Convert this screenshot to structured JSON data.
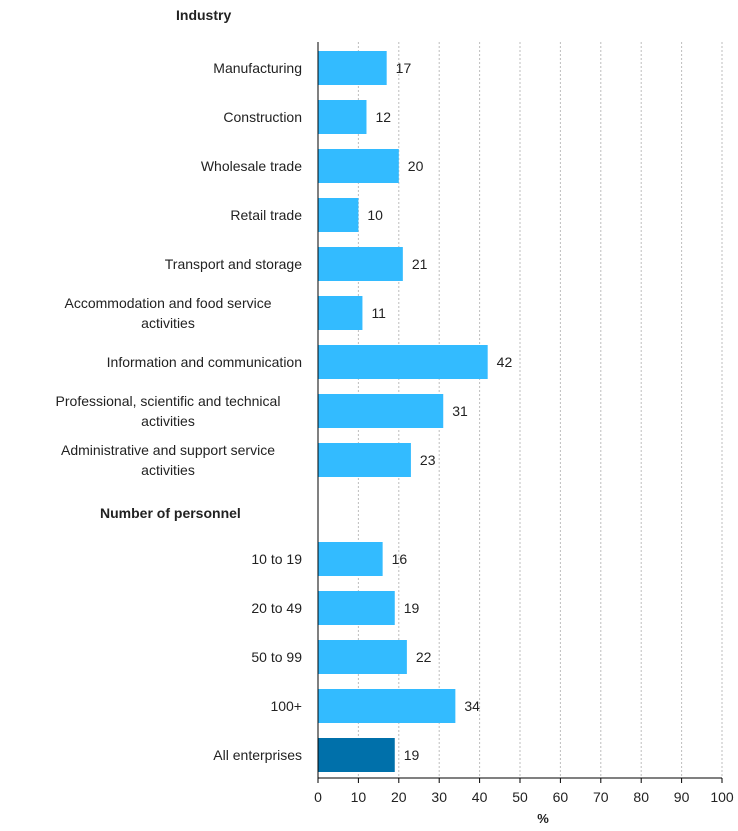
{
  "chart_data": {
    "type": "bar",
    "orientation": "horizontal",
    "xlabel": "%",
    "xlim": [
      0,
      100
    ],
    "xticks": [
      0,
      10,
      20,
      30,
      40,
      50,
      60,
      70,
      80,
      90,
      100
    ],
    "grid": "vertical dashed",
    "colors": {
      "bar": "#33bbff",
      "total_bar": "#0070aa"
    },
    "groups": [
      {
        "heading": "Industry",
        "items": [
          {
            "label": "Manufacturing",
            "value": 17
          },
          {
            "label": "Construction",
            "value": 12
          },
          {
            "label": "Wholesale trade",
            "value": 20
          },
          {
            "label": "Retail trade",
            "value": 10
          },
          {
            "label": "Transport and storage",
            "value": 21
          },
          {
            "label": "Accommodation and food service activities",
            "label_lines": [
              "Accommodation and food service",
              "activities"
            ],
            "value": 11
          },
          {
            "label": "Information and communication",
            "value": 42
          },
          {
            "label": "Professional, scientific and technical activities",
            "label_lines": [
              "Professional, scientific and technical",
              "activities"
            ],
            "value": 31
          },
          {
            "label": "Administrative and support service activities",
            "label_lines": [
              "Administrative and support service",
              "activities"
            ],
            "value": 23
          }
        ]
      },
      {
        "heading": "Number of personnel",
        "items": [
          {
            "label": "10 to 19",
            "value": 16
          },
          {
            "label": "20 to 49",
            "value": 19
          },
          {
            "label": "50 to 99",
            "value": 22
          },
          {
            "label": "100+",
            "value": 34
          }
        ]
      },
      {
        "heading": "",
        "items": [
          {
            "label": "All enterprises",
            "value": 19,
            "highlight": true
          }
        ]
      }
    ]
  }
}
